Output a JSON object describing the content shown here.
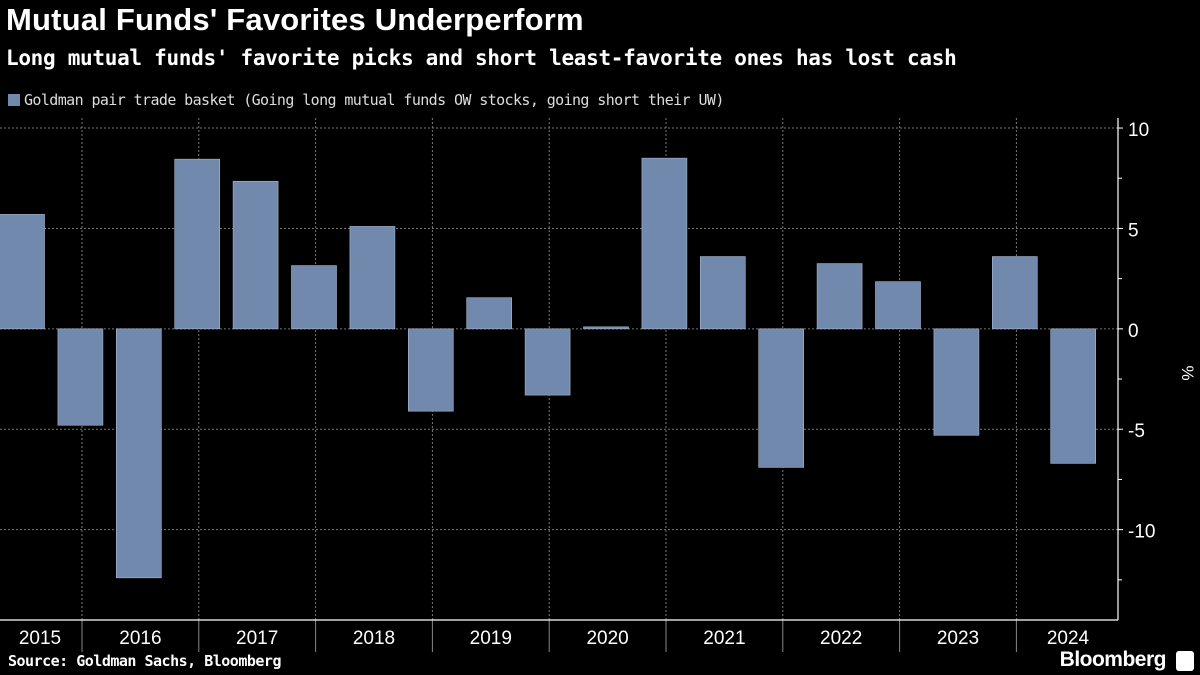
{
  "chart_data": {
    "type": "bar",
    "title": "Mutual Funds' Favorites Underperform",
    "subtitle": "Long mutual funds' favorite picks and short least-favorite ones has lost cash",
    "legend": [
      "Goldman pair trade basket (Going long mutual funds OW stocks, going short their UW)"
    ],
    "legend_position": "top-left",
    "ylabel": "%",
    "ylim": [
      -14.5,
      10.5
    ],
    "yticks": [
      10,
      5,
      0,
      -5,
      -10
    ],
    "xtick_labels": [
      "2015",
      "2016",
      "2017",
      "2018",
      "2019",
      "2020",
      "2021",
      "2022",
      "2023",
      "2024"
    ],
    "periods_per_year": 2,
    "values": [
      5.7,
      -4.8,
      -12.4,
      8.45,
      7.35,
      3.15,
      5.1,
      -4.1,
      1.55,
      -3.3,
      0.1,
      8.5,
      3.6,
      -6.9,
      3.25,
      2.35,
      -5.3,
      3.6,
      -6.7
    ],
    "grid": true,
    "colors": {
      "bar": "#7189ad",
      "background": "#000000",
      "grid": "#777777"
    },
    "source": "Source: Goldman Sachs, Bloomberg",
    "brand": "Bloomberg"
  }
}
